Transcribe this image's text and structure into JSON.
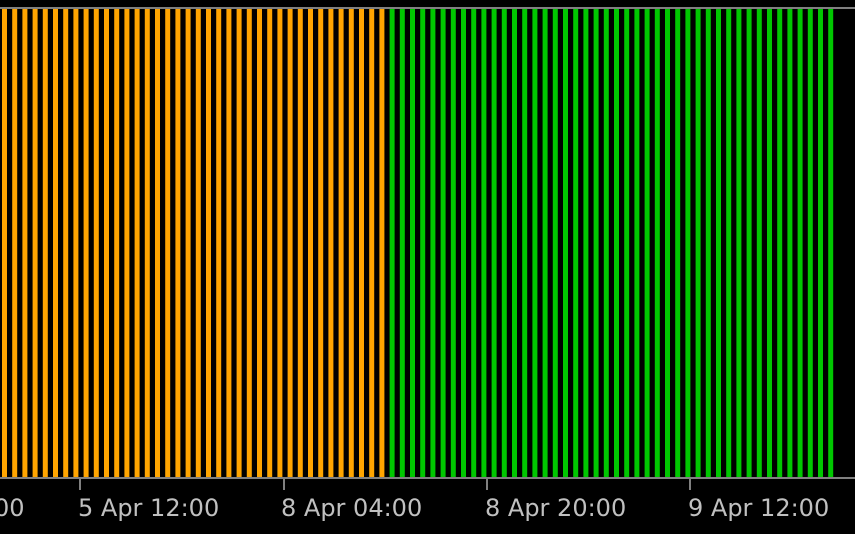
{
  "chart_data": {
    "type": "bar",
    "title": "",
    "xlabel": "",
    "ylabel": "",
    "grid": false,
    "legend": "none",
    "bar_count": 82,
    "series": [
      {
        "from_bar": 0,
        "to_bar": 37,
        "color": "#ffa500"
      },
      {
        "from_bar": 38,
        "to_bar": 81,
        "color": "#00c800"
      }
    ],
    "x_ticks": [
      "00",
      "5 Apr 12:00",
      "8 Apr 04:00",
      "8 Apr 20:00",
      "9 Apr 12:00"
    ],
    "style": {
      "background": "#000000",
      "axis_color": "#808080",
      "text_color": "#c0c0c0"
    }
  }
}
